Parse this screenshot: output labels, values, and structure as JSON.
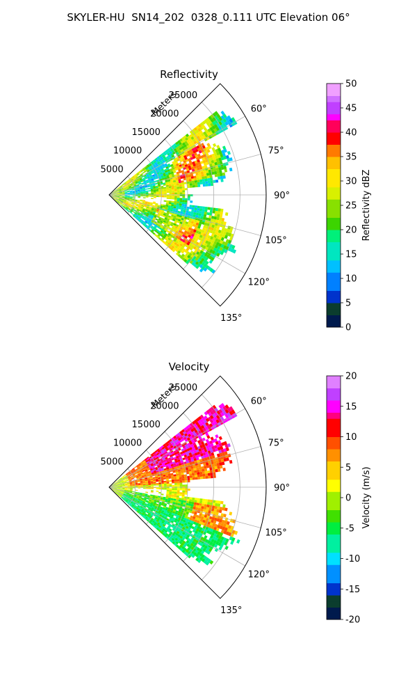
{
  "figure": {
    "suptitle": "SKYLER-HU  SN14_202  0328_0.111 UTC Elevation 06°"
  },
  "chart_data": [
    {
      "type": "heatmap",
      "projection": "polar-sector",
      "title": "Reflectivity",
      "radial_label": "Meters",
      "theta_range_deg": [
        45,
        135
      ],
      "r_range_m": [
        0,
        30000
      ],
      "r_ticks": [
        5000,
        10000,
        15000,
        20000,
        25000
      ],
      "theta_ticks_deg": [
        60,
        75,
        90,
        105,
        120,
        135
      ],
      "theta_tick_labels": [
        "60°",
        "75°",
        "90°",
        "105°",
        "120°",
        "135°"
      ],
      "grid": true,
      "colorbar": {
        "label": "Reflectivity dBZ",
        "range": [
          0,
          50
        ],
        "ticks": [
          0,
          5,
          10,
          15,
          20,
          25,
          30,
          35,
          40,
          45,
          50
        ]
      },
      "field_regions": [
        {
          "theta": [
            52,
            60
          ],
          "r": [
            5000,
            28000
          ],
          "dbz": 26
        },
        {
          "theta": [
            60,
            82
          ],
          "r": [
            1000,
            24000
          ],
          "dbz": 24
        },
        {
          "theta": [
            82,
            92
          ],
          "r": [
            1000,
            22000
          ],
          "dbz": 22
        },
        {
          "theta": [
            98,
            130
          ],
          "r": [
            3000,
            26000
          ],
          "dbz": 28
        }
      ]
    },
    {
      "type": "heatmap",
      "projection": "polar-sector",
      "title": "Velocity",
      "radial_label": "Meters",
      "theta_range_deg": [
        45,
        135
      ],
      "r_range_m": [
        0,
        30000
      ],
      "r_ticks": [
        5000,
        10000,
        15000,
        20000,
        25000
      ],
      "theta_ticks_deg": [
        60,
        75,
        90,
        105,
        120,
        135
      ],
      "theta_tick_labels": [
        "60°",
        "75°",
        "90°",
        "105°",
        "120°",
        "135°"
      ],
      "grid": true,
      "colorbar": {
        "label": "Velocity (m/s)",
        "range": [
          -20,
          20
        ],
        "ticks": [
          -20,
          -15,
          -10,
          -5,
          0,
          5,
          10,
          15,
          20
        ]
      },
      "field_regions": [
        {
          "theta": [
            52,
            70
          ],
          "r": [
            8000,
            25000
          ],
          "mps": 14
        },
        {
          "theta": [
            60,
            85
          ],
          "r": [
            2000,
            20000
          ],
          "mps": 8
        },
        {
          "theta": [
            85,
            100
          ],
          "r": [
            0,
            20000
          ],
          "mps": 1
        },
        {
          "theta": [
            100,
            130
          ],
          "r": [
            3000,
            26000
          ],
          "mps": -5
        }
      ]
    }
  ]
}
